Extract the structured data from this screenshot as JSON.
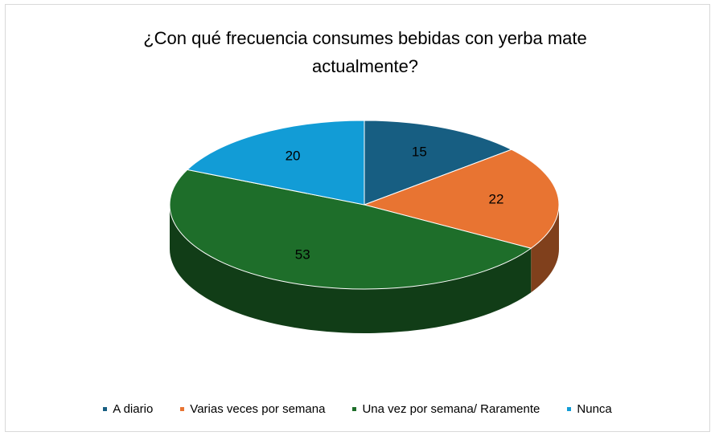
{
  "chart_data": {
    "type": "pie",
    "title": "¿Con qué frecuencia consumes bebidas con yerba mate actualmente?",
    "categories": [
      "A diario",
      "Varias veces por semana",
      "Una vez por semana/ Raramente",
      "Nunca"
    ],
    "values": [
      15,
      22,
      53,
      20
    ],
    "colors": [
      "#175e82",
      "#e87432",
      "#1e6e2a",
      "#129cd6"
    ],
    "legend": "bottom"
  }
}
